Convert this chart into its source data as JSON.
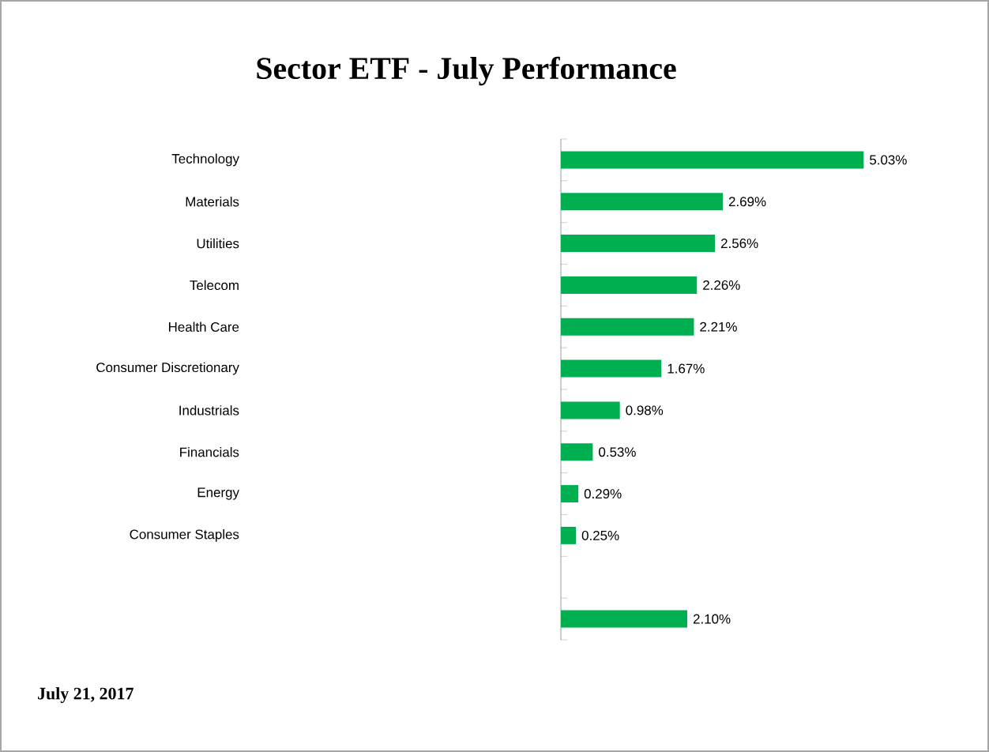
{
  "chart_data": {
    "type": "bar",
    "orientation": "horizontal",
    "title": "Sector ETF - July Performance",
    "categories": [
      "Technology",
      "Materials",
      "Utilities",
      "Telecom",
      "Health Care",
      "Consumer Discretionary",
      "Industrials",
      "Financials",
      "Energy",
      "Consumer Staples",
      null,
      null
    ],
    "values": [
      5.03,
      2.69,
      2.56,
      2.26,
      2.21,
      1.67,
      0.98,
      0.53,
      0.29,
      0.25,
      null,
      2.1
    ],
    "value_labels": [
      "5.03%",
      "2.69%",
      "2.56%",
      "2.26%",
      "2.21%",
      "1.67%",
      "0.98%",
      "0.53%",
      "0.29%",
      "0.25%",
      null,
      "2.10%"
    ],
    "color": "#00b050",
    "annotations": [
      "July 21,  2017"
    ]
  }
}
